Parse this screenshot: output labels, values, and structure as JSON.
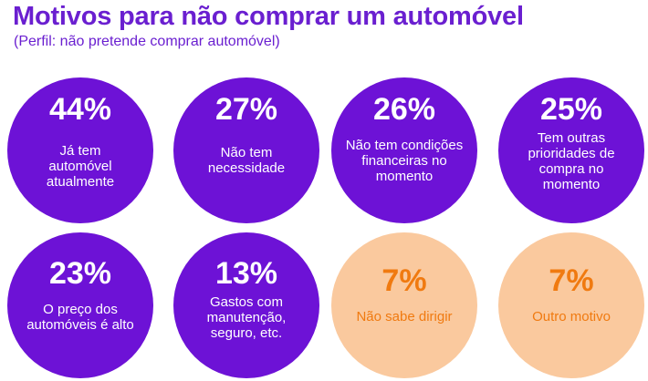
{
  "title": "Motivos para não comprar um automóvel",
  "subtitle": "(Perfil: não pretende comprar automóvel)",
  "colors": {
    "accent": "#6a1fd0",
    "bubble_primary": "#6d12d6",
    "bubble_secondary": "#fac99e",
    "text_secondary": "#f07a10"
  },
  "chart_data": {
    "type": "bubble-grid",
    "title": "Motivos para não comprar um automóvel",
    "subtitle": "(Perfil: não pretende comprar automóvel)",
    "items": [
      {
        "value_label": "44%",
        "value": 44,
        "label": "Já tem automóvel atualmente"
      },
      {
        "value_label": "27%",
        "value": 27,
        "label": "Não tem necessidade"
      },
      {
        "value_label": "26%",
        "value": 26,
        "label": "Não tem condições financeiras no momento"
      },
      {
        "value_label": "25%",
        "value": 25,
        "label": "Tem outras prioridades de compra no momento"
      },
      {
        "value_label": "23%",
        "value": 23,
        "label": "O preço dos automóveis é alto"
      },
      {
        "value_label": "13%",
        "value": 13,
        "label": "Gastos com manutenção, seguro, etc."
      },
      {
        "value_label": "7%",
        "value": 7,
        "label": "Não sabe dirigir"
      },
      {
        "value_label": "7%",
        "value": 7,
        "label": "Outro motivo"
      }
    ]
  }
}
